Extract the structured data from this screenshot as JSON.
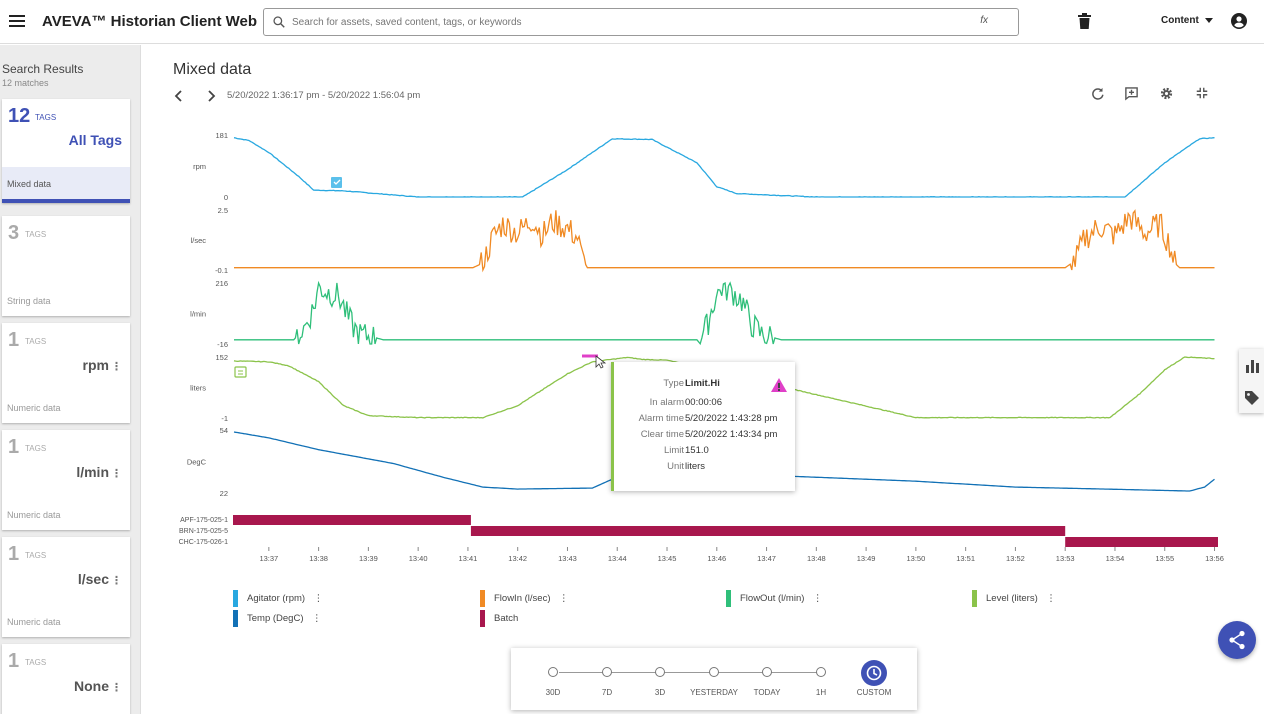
{
  "header": {
    "app_title": "AVEVA™ Historian Client Web",
    "search_placeholder": "Search for assets, saved content, tags, or keywords",
    "fx_label": "fx",
    "content_label": "Content"
  },
  "sidebar": {
    "title": "Search Results",
    "count": "12 matches",
    "cards": [
      {
        "num": "12",
        "tags": "TAGS",
        "right": "All Tags",
        "desc": "Mixed data",
        "kebab": ""
      },
      {
        "num": "3",
        "tags": "TAGS",
        "right": "",
        "desc": "String data",
        "kebab": ""
      },
      {
        "num": "1",
        "tags": "TAGS",
        "right": "rpm",
        "desc": "Numeric data",
        "kebab": "⋮"
      },
      {
        "num": "1",
        "tags": "TAGS",
        "right": "l/min",
        "desc": "Numeric data",
        "kebab": "⋮"
      },
      {
        "num": "1",
        "tags": "TAGS",
        "right": "l/sec",
        "desc": "Numeric data",
        "kebab": "⋮"
      },
      {
        "num": "1",
        "tags": "TAGS",
        "right": "None",
        "desc": "",
        "kebab": "⋮"
      }
    ]
  },
  "main": {
    "title": "Mixed data",
    "range": "5/20/2022 1:36:17 pm - 5/20/2022 1:56:04 pm"
  },
  "chart_data": {
    "type": "line",
    "x_ticks": [
      "13:37",
      "13:38",
      "13:39",
      "13:40",
      "13:41",
      "13:42",
      "13:43",
      "13:44",
      "13:45",
      "13:46",
      "13:47",
      "13:48",
      "13:49",
      "13:50",
      "13:51",
      "13:52",
      "13:53",
      "13:54",
      "13:55",
      "13:56"
    ],
    "x_start_min": 36.28,
    "x_end_min": 56.07,
    "series": [
      {
        "name": "Agitator (rpm)",
        "unit": "rpm",
        "ymax": "181",
        "ymin": "0",
        "lo": 0,
        "hi": 181,
        "color": "#29a8e0",
        "points": [
          [
            36.3,
            173
          ],
          [
            36.6,
            165
          ],
          [
            37.0,
            130
          ],
          [
            37.6,
            60
          ],
          [
            37.9,
            20
          ],
          [
            38.5,
            18
          ],
          [
            39.0,
            12
          ],
          [
            40.0,
            0
          ],
          [
            41.0,
            0
          ],
          [
            42.1,
            0
          ],
          [
            43.0,
            80
          ],
          [
            43.9,
            170
          ],
          [
            44.7,
            168
          ],
          [
            45.6,
            100
          ],
          [
            46.0,
            30
          ],
          [
            46.4,
            10
          ],
          [
            48.0,
            0
          ],
          [
            52.0,
            0
          ],
          [
            54.2,
            0
          ],
          [
            55.0,
            100
          ],
          [
            55.7,
            170
          ],
          [
            56.0,
            173
          ]
        ]
      },
      {
        "name": "FlowIn (l/sec)",
        "unit": "l/sec",
        "ymax": "2.5",
        "ymin": "-0.1",
        "lo": -0.1,
        "hi": 2.5,
        "color": "#f08a24",
        "points": [
          [
            36.3,
            0
          ],
          [
            41.1,
            0
          ],
          [
            41.3,
            0.2
          ],
          [
            41.5,
            1.3
          ],
          [
            41.7,
            1.9
          ],
          [
            42.0,
            1.5
          ],
          [
            42.3,
            2.1
          ],
          [
            42.5,
            1.4
          ],
          [
            42.7,
            2.0
          ],
          [
            43.0,
            1.7
          ],
          [
            43.2,
            1.3
          ],
          [
            43.3,
            0.4
          ],
          [
            43.4,
            0
          ],
          [
            53.0,
            0
          ],
          [
            53.2,
            0.3
          ],
          [
            53.4,
            1.3
          ],
          [
            53.7,
            1.8
          ],
          [
            54.0,
            1.4
          ],
          [
            54.3,
            2.2
          ],
          [
            54.6,
            1.5
          ],
          [
            54.9,
            1.9
          ],
          [
            55.1,
            1.0
          ],
          [
            55.2,
            0.2
          ],
          [
            55.3,
            0
          ],
          [
            56.0,
            0
          ]
        ]
      },
      {
        "name": "FlowOut (l/min)",
        "unit": "l/min",
        "ymax": "216",
        "ymin": "-16",
        "lo": -16,
        "hi": 216,
        "color": "#2fbf7a",
        "points": [
          [
            36.3,
            0
          ],
          [
            37.5,
            0
          ],
          [
            37.7,
            40
          ],
          [
            37.9,
            120
          ],
          [
            38.0,
            200
          ],
          [
            38.2,
            180
          ],
          [
            38.4,
            170
          ],
          [
            38.6,
            80
          ],
          [
            38.8,
            20
          ],
          [
            39.1,
            10
          ],
          [
            39.3,
            0
          ],
          [
            45.6,
            0
          ],
          [
            45.8,
            50
          ],
          [
            45.95,
            150
          ],
          [
            46.1,
            200
          ],
          [
            46.3,
            185
          ],
          [
            46.5,
            150
          ],
          [
            46.7,
            60
          ],
          [
            46.9,
            20
          ],
          [
            47.1,
            10
          ],
          [
            47.3,
            0
          ],
          [
            56.0,
            0
          ]
        ]
      },
      {
        "name": "Level (liters)",
        "unit": "liters",
        "ymax": "152",
        "ymin": "-1",
        "lo": -1,
        "hi": 152,
        "color": "#8bc34a",
        "points": [
          [
            36.3,
            142
          ],
          [
            37.0,
            140
          ],
          [
            37.4,
            130
          ],
          [
            38.0,
            90
          ],
          [
            38.5,
            30
          ],
          [
            39.0,
            5
          ],
          [
            40.0,
            0
          ],
          [
            41.3,
            0
          ],
          [
            42.0,
            30
          ],
          [
            43.0,
            110
          ],
          [
            43.5,
            140
          ],
          [
            44.2,
            151
          ],
          [
            44.5,
            146
          ],
          [
            45.0,
            144
          ],
          [
            50.0,
            0
          ],
          [
            53.9,
            0
          ],
          [
            54.5,
            60
          ],
          [
            55.0,
            120
          ],
          [
            55.4,
            152
          ],
          [
            56.0,
            148
          ]
        ]
      },
      {
        "name": "Temp (DegC)",
        "unit": "DegC",
        "ymax": "54",
        "ymin": "22",
        "lo": 22,
        "hi": 54,
        "color": "#1271b6",
        "points": [
          [
            36.3,
            53
          ],
          [
            37.0,
            50
          ],
          [
            38.0,
            44
          ],
          [
            39.5,
            37
          ],
          [
            40.5,
            30
          ],
          [
            41.3,
            25
          ],
          [
            42.0,
            24
          ],
          [
            43.5,
            24.5
          ],
          [
            43.9,
            29
          ],
          [
            44.3,
            33
          ],
          [
            44.6,
            34
          ],
          [
            46.0,
            32
          ],
          [
            48.0,
            30
          ],
          [
            50.0,
            28
          ],
          [
            52.0,
            25
          ],
          [
            53.8,
            24
          ],
          [
            55.5,
            23
          ],
          [
            55.8,
            25
          ],
          [
            56.0,
            29
          ]
        ]
      }
    ],
    "batch": {
      "name": "Batch",
      "color": "#a8174d",
      "labels": [
        "APF-175-025-1",
        "BRN-175-025-5",
        "CHC-175-026-1"
      ],
      "segments": [
        [
          36.28,
          41.06,
          0
        ],
        [
          41.06,
          53.0,
          1
        ],
        [
          53.0,
          56.07,
          2
        ]
      ]
    }
  },
  "tooltip": {
    "rows": [
      {
        "k": "Type",
        "v": "Limit.Hi"
      },
      {
        "k": "In alarm",
        "v": "00:00:06"
      },
      {
        "k": "Alarm time",
        "v": "5/20/2022 1:43:28 pm"
      },
      {
        "k": "Clear time",
        "v": "5/20/2022 1:43:34 pm"
      },
      {
        "k": "Limit",
        "v": "151.0"
      },
      {
        "k": "Unit",
        "v": "liters"
      }
    ]
  },
  "legend": [
    {
      "label": "Agitator (rpm)",
      "color": "#29a8e0",
      "kebab": "⋮"
    },
    {
      "label": "FlowIn (l/sec)",
      "color": "#f08a24",
      "kebab": "⋮"
    },
    {
      "label": "FlowOut (l/min)",
      "color": "#2fbf7a",
      "kebab": "⋮"
    },
    {
      "label": "Level (liters)",
      "color": "#8bc34a",
      "kebab": "⋮"
    },
    {
      "label": "Temp (DegC)",
      "color": "#1271b6",
      "kebab": "⋮"
    },
    {
      "label": "Batch",
      "color": "#a8174d",
      "kebab": ""
    }
  ],
  "timebar": [
    "30D",
    "7D",
    "3D",
    "YESTERDAY",
    "TODAY",
    "1H",
    "CUSTOM"
  ]
}
